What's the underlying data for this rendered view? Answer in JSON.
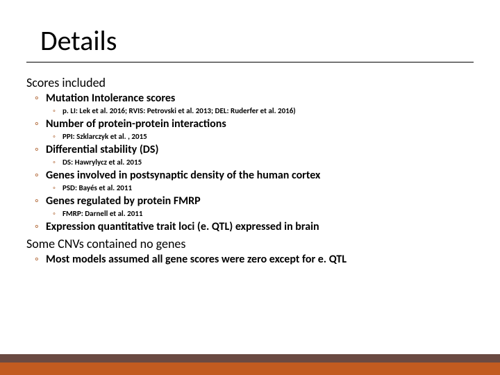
{
  "title": "Details",
  "sections": [
    {
      "heading": "Scores included",
      "items": [
        {
          "label": "Mutation Intolerance scores",
          "sub": "p. LI: Lek et al. 2016; RVIS: Petrovski et al. 2013; DEL: Ruderfer et al. 2016)"
        },
        {
          "label": "Number of protein-protein interactions",
          "sub": "PPI: Szklarczyk et al. , 2015"
        },
        {
          "label": "Differential stability (DS)",
          "sub": "DS: Hawrylycz et al. 2015"
        },
        {
          "label": "Genes involved in postsynaptic density of the human cortex",
          "sub": "PSD:  Bayés et al. 2011"
        },
        {
          "label": "Genes regulated by protein FMRP",
          "sub": "FMRP: Darnell et al. 2011"
        },
        {
          "label": "Expression quantitative trait loci (e. QTL) expressed in brain"
        }
      ]
    },
    {
      "heading": "Some CNVs contained no genes",
      "items": [
        {
          "label": "Most models assumed all gene scores were zero except for e. QTL"
        }
      ]
    }
  ],
  "colors": {
    "bullet_marker": "#b36a3a",
    "footer_top": "#6a4a42",
    "footer_bottom": "#c25b20"
  }
}
